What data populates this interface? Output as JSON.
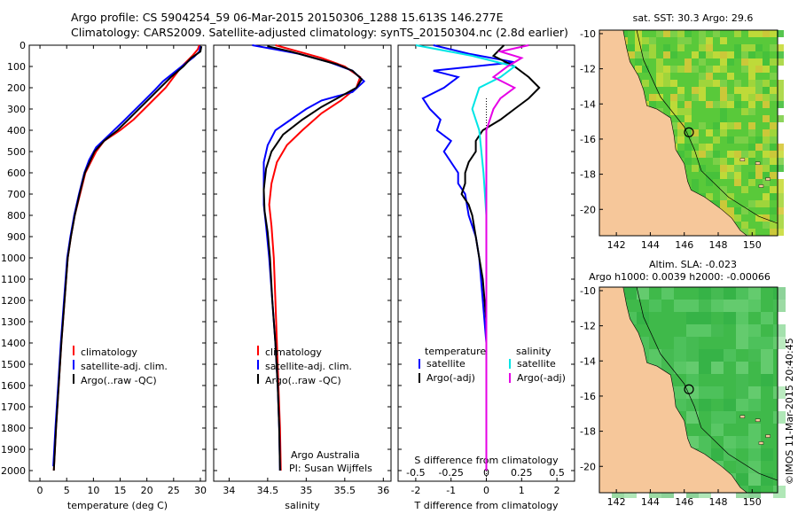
{
  "header": {
    "line1": "Argo profile: CS 5904254_59 06-Mar-2015 20150306_1288 15.613S 146.277E",
    "line2": "Climatology: CARS2009. Satellite-adjusted climatology: synTS_20150304.nc (2.8d earlier)"
  },
  "footer": {
    "credit": "Argo Australia",
    "pi": "PI: Susan Wijffels",
    "imos_stamp": "©IMOS 11-Mar-2015 20:40:45"
  },
  "colors": {
    "climatology": "#ff0000",
    "satellite": "#0000ff",
    "argo": "#000000",
    "satellite_s": "#00e5e5",
    "argo_s": "#e600e6",
    "land": "#f6c79a",
    "sst_ocean": "#7ed957",
    "sla_ocean": "#3fbf3f"
  },
  "chart_data": [
    {
      "type": "line",
      "xlabel": "temperature (deg C)",
      "ylabel": "",
      "xlim": [
        -2,
        31
      ],
      "ylim": [
        2050,
        0
      ],
      "xticks": [
        0,
        5,
        10,
        15,
        20,
        25,
        30
      ],
      "yticks": [
        0,
        100,
        200,
        300,
        400,
        500,
        600,
        700,
        800,
        900,
        1000,
        1100,
        1200,
        1300,
        1400,
        1500,
        1600,
        1700,
        1800,
        1900,
        2000
      ],
      "legend": [
        "climatology",
        "satellite-adj. clim.",
        "Argo(..raw -QC)"
      ],
      "series": [
        {
          "name": "climatology",
          "color": "#ff0000",
          "points": [
            [
              29.8,
              0
            ],
            [
              29.5,
              20
            ],
            [
              28.5,
              50
            ],
            [
              26.5,
              100
            ],
            [
              25,
              150
            ],
            [
              23.5,
              200
            ],
            [
              21.5,
              250
            ],
            [
              19.5,
              300
            ],
            [
              17.5,
              350
            ],
            [
              15,
              400
            ],
            [
              12,
              450
            ],
            [
              10.5,
              500
            ],
            [
              9.5,
              550
            ],
            [
              8.5,
              600
            ],
            [
              7.5,
              700
            ],
            [
              6.5,
              800
            ],
            [
              5.8,
              900
            ],
            [
              5.2,
              1000
            ],
            [
              4.6,
              1200
            ],
            [
              4,
              1400
            ],
            [
              3.5,
              1600
            ],
            [
              3,
              1800
            ],
            [
              2.6,
              2000
            ]
          ]
        },
        {
          "name": "satellite-adj. clim.",
          "color": "#0000ff",
          "points": [
            [
              30,
              5
            ],
            [
              29.8,
              30
            ],
            [
              28.8,
              55
            ],
            [
              27,
              90
            ],
            [
              25,
              130
            ],
            [
              23,
              170
            ],
            [
              21.5,
              210
            ],
            [
              19.5,
              260
            ],
            [
              17.5,
              310
            ],
            [
              15.5,
              360
            ],
            [
              13,
              420
            ],
            [
              10.5,
              480
            ],
            [
              9.2,
              540
            ],
            [
              8.3,
              600
            ],
            [
              7.3,
              700
            ],
            [
              6.4,
              800
            ],
            [
              5.7,
              900
            ],
            [
              5.1,
              1000
            ],
            [
              4.5,
              1200
            ],
            [
              3.9,
              1400
            ],
            [
              3.4,
              1600
            ],
            [
              2.9,
              1800
            ],
            [
              2.5,
              1980
            ]
          ]
        },
        {
          "name": "Argo(..raw -QC)",
          "color": "#000000",
          "points": [
            [
              30.2,
              5
            ],
            [
              30,
              30
            ],
            [
              28.3,
              60
            ],
            [
              26.8,
              100
            ],
            [
              24.5,
              150
            ],
            [
              22.5,
              200
            ],
            [
              20.5,
              250
            ],
            [
              18.5,
              300
            ],
            [
              16.5,
              350
            ],
            [
              14.5,
              400
            ],
            [
              12,
              450
            ],
            [
              10.2,
              500
            ],
            [
              9.3,
              550
            ],
            [
              8.4,
              600
            ],
            [
              7.4,
              700
            ],
            [
              6.5,
              800
            ],
            [
              5.8,
              900
            ],
            [
              5.2,
              1000
            ],
            [
              4.6,
              1200
            ],
            [
              4,
              1400
            ],
            [
              3.5,
              1600
            ],
            [
              3,
              1800
            ],
            [
              2.6,
              2000
            ]
          ]
        }
      ]
    },
    {
      "type": "line",
      "xlabel": "salinity",
      "ylabel": "",
      "xlim": [
        33.8,
        36.1
      ],
      "ylim": [
        2050,
        0
      ],
      "xticks": [
        34,
        34.5,
        35,
        35.5,
        36
      ],
      "legend": [
        "climatology",
        "satellite-adj. clim.",
        "Argo(..raw -QC)"
      ],
      "series": [
        {
          "name": "climatology",
          "color": "#ff0000",
          "points": [
            [
              34.6,
              0
            ],
            [
              34.9,
              30
            ],
            [
              35.2,
              60
            ],
            [
              35.5,
              100
            ],
            [
              35.7,
              150
            ],
            [
              35.65,
              200
            ],
            [
              35.45,
              260
            ],
            [
              35.2,
              320
            ],
            [
              34.95,
              400
            ],
            [
              34.75,
              470
            ],
            [
              34.62,
              550
            ],
            [
              34.55,
              650
            ],
            [
              34.52,
              750
            ],
            [
              34.55,
              850
            ],
            [
              34.58,
              1000
            ],
            [
              34.6,
              1200
            ],
            [
              34.62,
              1400
            ],
            [
              34.64,
              1600
            ],
            [
              34.66,
              1800
            ],
            [
              34.67,
              2000
            ]
          ]
        },
        {
          "name": "satellite-adj. clim.",
          "color": "#0000ff",
          "points": [
            [
              34.3,
              0
            ],
            [
              34.6,
              20
            ],
            [
              34.9,
              40
            ],
            [
              35.3,
              80
            ],
            [
              35.6,
              120
            ],
            [
              35.75,
              170
            ],
            [
              35.6,
              220
            ],
            [
              35.2,
              260
            ],
            [
              35.0,
              300
            ],
            [
              34.8,
              350
            ],
            [
              34.6,
              400
            ],
            [
              34.5,
              470
            ],
            [
              34.45,
              550
            ],
            [
              34.45,
              650
            ],
            [
              34.45,
              750
            ],
            [
              34.48,
              850
            ],
            [
              34.52,
              1000
            ],
            [
              34.56,
              1200
            ],
            [
              34.6,
              1400
            ],
            [
              34.63,
              1600
            ],
            [
              34.65,
              1800
            ],
            [
              34.66,
              2000
            ]
          ]
        },
        {
          "name": "Argo(..raw -QC)",
          "color": "#000000",
          "points": [
            [
              34.5,
              5
            ],
            [
              34.8,
              30
            ],
            [
              35.1,
              60
            ],
            [
              35.4,
              90
            ],
            [
              35.6,
              120
            ],
            [
              35.72,
              160
            ],
            [
              35.65,
              200
            ],
            [
              35.45,
              240
            ],
            [
              35.2,
              290
            ],
            [
              34.95,
              350
            ],
            [
              34.7,
              420
            ],
            [
              34.55,
              500
            ],
            [
              34.48,
              580
            ],
            [
              34.45,
              680
            ],
            [
              34.46,
              780
            ],
            [
              34.5,
              880
            ],
            [
              34.53,
              1000
            ],
            [
              34.56,
              1200
            ],
            [
              34.6,
              1400
            ],
            [
              34.63,
              1600
            ],
            [
              34.65,
              1800
            ],
            [
              34.66,
              2000
            ]
          ]
        }
      ]
    },
    {
      "type": "line",
      "xlabel": "T difference from climatology",
      "xlabel_top": "S difference from climatology",
      "xlim": [
        -2.5,
        2.5
      ],
      "xticks": [
        -2,
        -1,
        0,
        1,
        2
      ],
      "xticks_s": [
        -0.5,
        -0.25,
        0,
        0.25,
        0.5
      ],
      "ylim": [
        2050,
        0
      ],
      "legend_titles": [
        "temperature",
        "salinity"
      ],
      "legend": [
        "satellite",
        "Argo(-adj)",
        "satellite",
        "Argo(-adj)"
      ],
      "series": [
        {
          "name": "satellite",
          "color": "#0000ff",
          "points": [
            [
              -1.5,
              0
            ],
            [
              -0.5,
              40
            ],
            [
              0.8,
              80
            ],
            [
              -1.5,
              120
            ],
            [
              -0.8,
              150
            ],
            [
              -1.2,
              200
            ],
            [
              -1.8,
              250
            ],
            [
              -1.6,
              300
            ],
            [
              -1.3,
              350
            ],
            [
              -1.4,
              400
            ],
            [
              -1.0,
              450
            ],
            [
              -1.2,
              500
            ],
            [
              -1.0,
              550
            ],
            [
              -0.8,
              600
            ],
            [
              -0.8,
              650
            ],
            [
              -0.6,
              700
            ],
            [
              -0.5,
              800
            ],
            [
              -0.3,
              900
            ],
            [
              -0.2,
              1000
            ],
            [
              -0.1,
              1200
            ],
            [
              0,
              1400
            ],
            [
              0,
              1600
            ],
            [
              0,
              1800
            ],
            [
              0,
              2000
            ]
          ]
        },
        {
          "name": "Argo(-adj)",
          "color": "#000000",
          "points": [
            [
              0.5,
              0
            ],
            [
              0.2,
              50
            ],
            [
              0.8,
              100
            ],
            [
              1.2,
              150
            ],
            [
              1.5,
              200
            ],
            [
              1.2,
              250
            ],
            [
              0.8,
              300
            ],
            [
              0.4,
              350
            ],
            [
              -0.1,
              400
            ],
            [
              -0.3,
              450
            ],
            [
              -0.3,
              500
            ],
            [
              -0.5,
              550
            ],
            [
              -0.6,
              600
            ],
            [
              -0.6,
              650
            ],
            [
              -0.7,
              700
            ],
            [
              -0.5,
              750
            ],
            [
              -0.4,
              800
            ],
            [
              -0.3,
              900
            ],
            [
              -0.2,
              1000
            ],
            [
              -0.1,
              1100
            ],
            [
              0,
              1300
            ],
            [
              0,
              1500
            ],
            [
              0,
              1700
            ],
            [
              0,
              2000
            ]
          ]
        },
        {
          "name": "satellite",
          "axis": "s",
          "color": "#00e5e5",
          "points": [
            [
              -0.5,
              0
            ],
            [
              -0.1,
              50
            ],
            [
              0.2,
              100
            ],
            [
              0.1,
              150
            ],
            [
              -0.05,
              200
            ],
            [
              -0.1,
              300
            ],
            [
              -0.05,
              400
            ],
            [
              -0.02,
              600
            ],
            [
              0,
              800
            ],
            [
              0,
              1200
            ],
            [
              0,
              2000
            ]
          ]
        },
        {
          "name": "Argo(-adj)",
          "axis": "s",
          "color": "#e600e6",
          "points": [
            [
              0.3,
              0
            ],
            [
              0.1,
              30
            ],
            [
              0.25,
              60
            ],
            [
              0.15,
              100
            ],
            [
              0.05,
              150
            ],
            [
              0.2,
              200
            ],
            [
              0.1,
              250
            ],
            [
              0.05,
              300
            ],
            [
              0,
              400
            ],
            [
              0,
              600
            ],
            [
              0,
              1000
            ],
            [
              0,
              2000
            ]
          ]
        }
      ]
    },
    {
      "type": "heatmap",
      "title": "sat. SST: 30.3 Argo: 29.6",
      "xlim": [
        141,
        151.5
      ],
      "ylim": [
        -21.5,
        -9.8
      ],
      "xticks": [
        142,
        144,
        146,
        148,
        150
      ],
      "yticks": [
        -10,
        -12,
        -14,
        -16,
        -18,
        -20
      ],
      "marker": {
        "lon": 146.277,
        "lat": -15.613
      }
    },
    {
      "type": "heatmap",
      "title": "Altim. SLA: -0.023",
      "subtitle": "Argo h1000: 0.0039 h2000: -0.00066",
      "xlim": [
        141,
        151.5
      ],
      "ylim": [
        -21.5,
        -9.8
      ],
      "xticks": [
        142,
        144,
        146,
        148,
        150
      ],
      "yticks": [
        -10,
        -12,
        -14,
        -16,
        -18,
        -20
      ],
      "marker": {
        "lon": 146.277,
        "lat": -15.613
      }
    }
  ]
}
